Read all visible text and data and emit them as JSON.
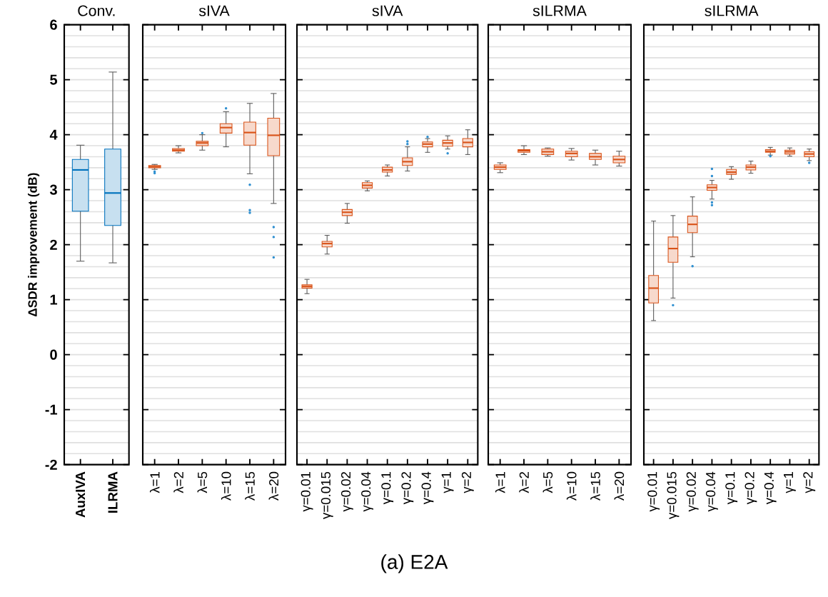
{
  "chart_data": [
    {
      "type": "box",
      "title": "Conv.",
      "ylabel": "ΔSDR improvement (dB)",
      "categories": [
        "AuxIVA",
        "ILRMA"
      ],
      "color": "#0072bd",
      "grid": "y",
      "ylim": [
        -2,
        6
      ],
      "yticks": [
        -2,
        -1,
        0,
        1,
        2,
        3,
        4,
        5,
        6
      ],
      "boxes": [
        {
          "low": 1.7,
          "q1": 2.61,
          "median": 3.36,
          "q3": 3.55,
          "high": 3.81
        },
        {
          "low": 1.67,
          "q1": 2.35,
          "median": 2.94,
          "q3": 3.74,
          "high": 5.14
        }
      ]
    },
    {
      "type": "box",
      "title": "sIVA",
      "categories": [
        "λ=1",
        "λ=2",
        "λ=5",
        "λ=10",
        "λ=15",
        "λ=20"
      ],
      "color": "#d95319",
      "grid": "y",
      "ylim": [
        -2,
        6
      ],
      "yticks": [
        -2,
        -1,
        0,
        1,
        2,
        3,
        4,
        5,
        6
      ],
      "tick_labels": "x",
      "boxes": [
        {
          "low": 3.37,
          "q1": 3.4,
          "median": 3.42,
          "q3": 3.44,
          "high": 3.46,
          "outliers": [
            3.3,
            3.33
          ]
        },
        {
          "low": 3.67,
          "q1": 3.7,
          "median": 3.72,
          "q3": 3.75,
          "high": 3.8
        },
        {
          "low": 3.72,
          "q1": 3.8,
          "median": 3.85,
          "q3": 3.88,
          "high": 4.0,
          "outliers": [
            4.03
          ]
        },
        {
          "low": 3.78,
          "q1": 4.03,
          "median": 4.13,
          "q3": 4.2,
          "high": 4.42,
          "outliers": [
            4.48
          ]
        },
        {
          "low": 3.29,
          "q1": 3.81,
          "median": 4.04,
          "q3": 4.23,
          "high": 4.57,
          "outliers": [
            3.09,
            2.63,
            2.58
          ]
        },
        {
          "low": 2.75,
          "q1": 3.62,
          "median": 3.99,
          "q3": 4.3,
          "high": 4.75,
          "outliers": [
            2.32,
            2.14,
            1.77
          ]
        }
      ]
    },
    {
      "type": "box",
      "title": "sIVA",
      "categories": [
        "γ=0.01",
        "γ=0.015",
        "γ=0.02",
        "γ=0.04",
        "γ=0.1",
        "γ=0.2",
        "γ=0.4",
        "γ=1",
        "γ=2"
      ],
      "color": "#d95319",
      "grid": "y",
      "ylim": [
        -2,
        6
      ],
      "yticks": [
        -2,
        -1,
        0,
        1,
        2,
        3,
        4,
        5,
        6
      ],
      "tick_labels": "x",
      "annotations": [
        "(a) E2A"
      ],
      "boxes": [
        {
          "low": 1.11,
          "q1": 1.21,
          "median": 1.24,
          "q3": 1.27,
          "high": 1.37
        },
        {
          "low": 1.83,
          "q1": 1.96,
          "median": 2.02,
          "q3": 2.06,
          "high": 2.17
        },
        {
          "low": 2.39,
          "q1": 2.53,
          "median": 2.59,
          "q3": 2.64,
          "high": 2.75
        },
        {
          "low": 2.98,
          "q1": 3.03,
          "median": 3.08,
          "q3": 3.13,
          "high": 3.16
        },
        {
          "low": 3.25,
          "q1": 3.32,
          "median": 3.36,
          "q3": 3.41,
          "high": 3.45
        },
        {
          "low": 3.34,
          "q1": 3.44,
          "median": 3.51,
          "q3": 3.58,
          "high": 3.78,
          "outliers": [
            3.83,
            3.88
          ]
        },
        {
          "low": 3.68,
          "q1": 3.78,
          "median": 3.83,
          "q3": 3.87,
          "high": 3.93,
          "outliers": [
            3.96
          ]
        },
        {
          "low": 3.74,
          "q1": 3.79,
          "median": 3.85,
          "q3": 3.9,
          "high": 3.98,
          "outliers": [
            3.66
          ]
        },
        {
          "low": 3.64,
          "q1": 3.78,
          "median": 3.86,
          "q3": 3.93,
          "high": 4.09
        }
      ]
    },
    {
      "type": "box",
      "title": "sILRMA",
      "categories": [
        "λ=1",
        "λ=2",
        "λ=5",
        "λ=10",
        "λ=15",
        "λ=20"
      ],
      "color": "#d95319",
      "grid": "y",
      "ylim": [
        -2,
        6
      ],
      "yticks": [
        -2,
        -1,
        0,
        1,
        2,
        3,
        4,
        5,
        6
      ],
      "tick_labels": "x",
      "boxes": [
        {
          "low": 3.31,
          "q1": 3.37,
          "median": 3.41,
          "q3": 3.45,
          "high": 3.49
        },
        {
          "low": 3.64,
          "q1": 3.68,
          "median": 3.71,
          "q3": 3.73,
          "high": 3.8
        },
        {
          "low": 3.61,
          "q1": 3.64,
          "median": 3.69,
          "q3": 3.74,
          "high": 3.76
        },
        {
          "low": 3.54,
          "q1": 3.6,
          "median": 3.66,
          "q3": 3.7,
          "high": 3.75
        },
        {
          "low": 3.45,
          "q1": 3.55,
          "median": 3.6,
          "q3": 3.66,
          "high": 3.72
        },
        {
          "low": 3.43,
          "q1": 3.49,
          "median": 3.55,
          "q3": 3.61,
          "high": 3.7
        }
      ]
    },
    {
      "type": "box",
      "title": "sILRMA",
      "categories": [
        "γ=0.01",
        "γ=0.015",
        "γ=0.02",
        "γ=0.04",
        "γ=0.1",
        "γ=0.2",
        "γ=0.4",
        "γ=1",
        "γ=2"
      ],
      "color": "#d95319",
      "grid": "y",
      "ylim": [
        -2,
        6
      ],
      "yticks": [
        -2,
        -1,
        0,
        1,
        2,
        3,
        4,
        5,
        6
      ],
      "tick_labels": "x",
      "boxes": [
        {
          "low": 0.62,
          "q1": 0.94,
          "median": 1.21,
          "q3": 1.44,
          "high": 2.43
        },
        {
          "low": 1.03,
          "q1": 1.68,
          "median": 1.93,
          "q3": 2.14,
          "high": 2.53,
          "outliers": [
            0.9
          ]
        },
        {
          "low": 1.78,
          "q1": 2.22,
          "median": 2.37,
          "q3": 2.52,
          "high": 2.87,
          "outliers": [
            1.61
          ]
        },
        {
          "low": 2.83,
          "q1": 2.99,
          "median": 3.04,
          "q3": 3.09,
          "high": 3.17,
          "outliers": [
            3.38,
            3.25,
            2.77,
            2.72
          ]
        },
        {
          "low": 3.19,
          "q1": 3.28,
          "median": 3.32,
          "q3": 3.37,
          "high": 3.42
        },
        {
          "low": 3.3,
          "q1": 3.36,
          "median": 3.41,
          "q3": 3.45,
          "high": 3.52
        },
        {
          "low": 3.63,
          "q1": 3.68,
          "median": 3.7,
          "q3": 3.73,
          "high": 3.77,
          "outliers": [
            3.61
          ]
        },
        {
          "low": 3.61,
          "q1": 3.65,
          "median": 3.69,
          "q3": 3.72,
          "high": 3.76
        },
        {
          "low": 3.53,
          "q1": 3.6,
          "median": 3.65,
          "q3": 3.69,
          "high": 3.74,
          "outliers": [
            3.49
          ]
        }
      ]
    }
  ]
}
